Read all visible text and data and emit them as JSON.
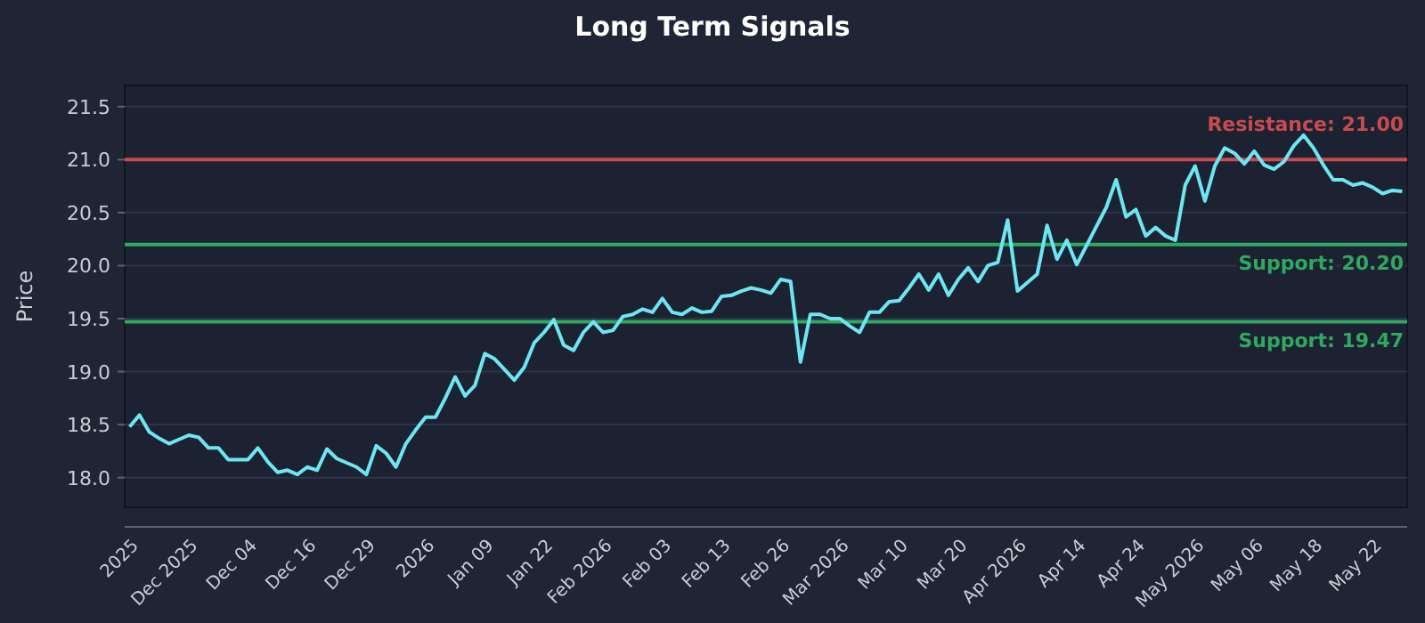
{
  "chart_data": {
    "type": "line",
    "title": "Long Term Signals",
    "ylabel": "Price",
    "categories": [
      null,
      "2025",
      null,
      null,
      null,
      null,
      null,
      "Dec 2025",
      null,
      null,
      null,
      null,
      null,
      "Dec 04",
      null,
      null,
      null,
      null,
      null,
      "Dec 16",
      null,
      null,
      null,
      null,
      null,
      "Dec 29",
      null,
      null,
      null,
      null,
      null,
      "2026",
      null,
      null,
      null,
      null,
      null,
      "Jan 09",
      null,
      null,
      null,
      null,
      null,
      "Jan 22",
      null,
      null,
      null,
      null,
      null,
      "Feb 2026",
      null,
      null,
      null,
      null,
      null,
      "Feb 03",
      null,
      null,
      null,
      null,
      null,
      "Feb 13",
      null,
      null,
      null,
      null,
      null,
      "Feb 26",
      null,
      null,
      null,
      null,
      null,
      "Mar 2026",
      null,
      null,
      null,
      null,
      null,
      "Mar 10",
      null,
      null,
      null,
      null,
      null,
      "Mar 20",
      null,
      null,
      null,
      null,
      null,
      "Apr 2026",
      null,
      null,
      null,
      null,
      null,
      "Apr 14",
      null,
      null,
      null,
      null,
      null,
      "Apr 24",
      null,
      null,
      null,
      null,
      null,
      "May 2026",
      null,
      null,
      null,
      null,
      null,
      "May 06",
      null,
      null,
      null,
      null,
      null,
      "May 18",
      null,
      null,
      null,
      null,
      null,
      "May 22",
      null,
      null
    ],
    "series": [
      {
        "color": "#6ee6f2",
        "values": [
          18.48,
          18.59,
          18.43,
          18.37,
          18.32,
          18.36,
          18.4,
          18.38,
          18.28,
          18.28,
          18.17,
          18.17,
          18.17,
          18.28,
          18.15,
          18.05,
          18.07,
          18.03,
          18.1,
          18.07,
          18.27,
          18.18,
          18.14,
          18.1,
          18.03,
          18.3,
          18.23,
          18.1,
          18.32,
          18.45,
          18.57,
          18.57,
          18.75,
          18.95,
          18.77,
          18.87,
          19.17,
          19.12,
          19.02,
          18.92,
          19.04,
          19.27,
          19.37,
          19.49,
          19.25,
          19.2,
          19.37,
          19.47,
          19.37,
          19.39,
          19.52,
          19.54,
          19.59,
          19.56,
          19.69,
          19.56,
          19.54,
          19.6,
          19.56,
          19.57,
          19.71,
          19.72,
          19.76,
          19.79,
          19.77,
          19.74,
          19.87,
          19.85,
          19.09,
          19.54,
          19.54,
          19.5,
          19.5,
          19.43,
          19.37,
          19.56,
          19.56,
          19.66,
          19.67,
          19.79,
          19.92,
          19.77,
          19.92,
          19.72,
          19.87,
          19.98,
          19.85,
          20.0,
          20.03,
          20.43,
          19.76,
          19.84,
          19.92,
          20.38,
          20.06,
          20.24,
          20.01,
          20.19,
          20.37,
          20.55,
          20.81,
          20.46,
          20.53,
          20.28,
          20.36,
          20.28,
          20.24,
          20.76,
          20.94,
          20.61,
          20.94,
          21.11,
          21.06,
          20.96,
          21.08,
          20.95,
          20.91,
          20.98,
          21.13,
          21.23,
          21.11,
          20.95,
          20.81,
          20.81,
          20.76,
          20.78,
          20.74,
          20.68,
          20.71,
          20.7
        ]
      }
    ],
    "ylim": [
      17.72,
      21.7
    ],
    "yticks": [
      {
        "value": 18,
        "label": "18.0"
      },
      {
        "value": 18.5,
        "label": "18.5"
      },
      {
        "value": 19,
        "label": "19.0"
      },
      {
        "value": 19.5,
        "label": "19.5"
      },
      {
        "value": 20,
        "label": "20.0"
      },
      {
        "value": 20.5,
        "label": "20.5"
      },
      {
        "value": 21,
        "label": "21.0"
      },
      {
        "value": 21.5,
        "label": "21.5"
      }
    ],
    "ref_lines": [
      {
        "axis": "y",
        "value": 21,
        "label": "Resistance: 21.00",
        "color": "#c84b50"
      },
      {
        "axis": "y",
        "value": 20.2,
        "label": "Support: 20.20",
        "color": "#2fa860"
      },
      {
        "axis": "y",
        "value": 19.47,
        "label": "Support: 19.47",
        "color": "#2fa860"
      }
    ],
    "grid": "y",
    "line_style": "solid",
    "marker": "none"
  }
}
